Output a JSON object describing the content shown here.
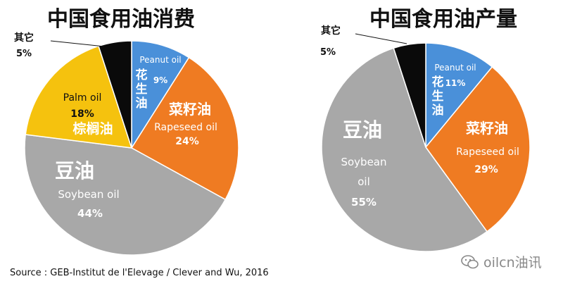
{
  "chart_data": [
    {
      "type": "pie",
      "title": "中国食用油消费",
      "slices": [
        {
          "zh": "花生油",
          "en": "Peanut oil",
          "pct_label": "9%",
          "value": 9,
          "color": "#4a90d9"
        },
        {
          "zh": "菜籽油",
          "en": "Rapeseed oil",
          "pct_label": "24%",
          "value": 24,
          "color": "#ef7b22"
        },
        {
          "zh": "豆油",
          "en": "Soybean oil",
          "pct_label": "44%",
          "value": 44,
          "color": "#a8a8a8"
        },
        {
          "zh": "棕榈油",
          "en": "Palm oil",
          "pct_label": "18%",
          "value": 18,
          "color": "#f5c20e"
        },
        {
          "zh": "其它",
          "en": "",
          "pct_label": "5%",
          "value": 5,
          "color": "#0a0a0a"
        }
      ]
    },
    {
      "type": "pie",
      "title": "中国食用油产量",
      "slices": [
        {
          "zh": "花生油",
          "en": "Peanut oil",
          "pct_label": "11%",
          "value": 11,
          "color": "#4a90d9"
        },
        {
          "zh": "菜籽油",
          "en": "Rapeseed oil",
          "pct_label": "29%",
          "value": 29,
          "color": "#ef7b22"
        },
        {
          "zh": "豆油",
          "en": "Soybean oil",
          "pct_label": "55%",
          "value": 55,
          "color": "#a8a8a8"
        },
        {
          "zh": "其它",
          "en": "",
          "pct_label": "5%",
          "value": 5,
          "color": "#0a0a0a"
        }
      ]
    }
  ],
  "source": "Source : GEB-Institut de l'Elevage / Clever and Wu, 2016",
  "watermark": "oilcn油讯"
}
